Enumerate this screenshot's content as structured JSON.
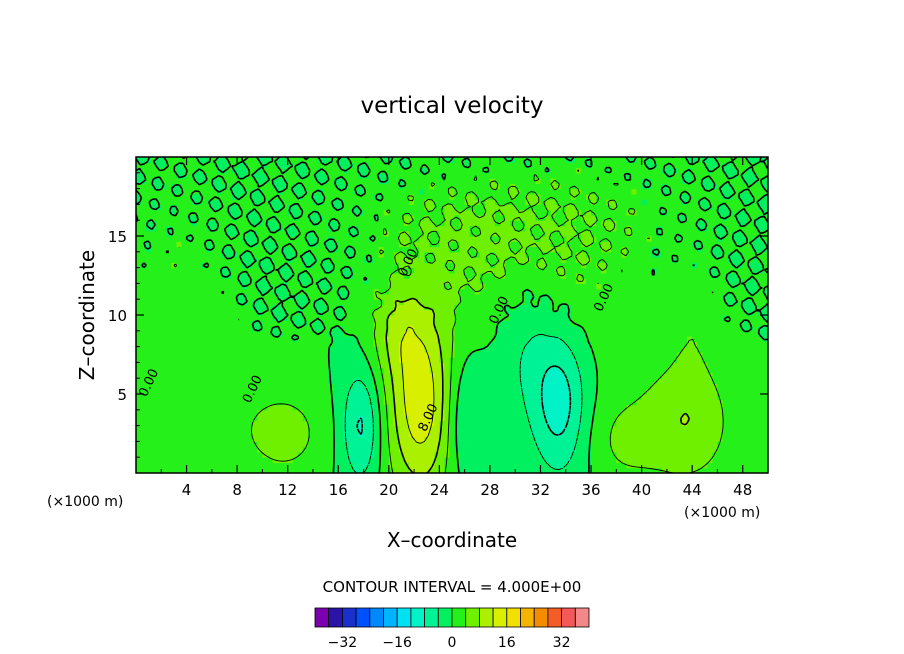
{
  "chart_data": {
    "type": "heatmap",
    "title": "vertical velocity",
    "xlabel": "X–coordinate",
    "ylabel": "Z–coordinate",
    "x_unit_left": "(×1000 m)",
    "x_unit_right": "(×1000 m)",
    "xlim": [
      0,
      50
    ],
    "ylim": [
      0,
      20
    ],
    "x_ticks": [
      "4",
      "8",
      "12",
      "16",
      "20",
      "24",
      "28",
      "32",
      "36",
      "40",
      "44",
      "48"
    ],
    "x_tick_values": [
      4,
      8,
      12,
      16,
      20,
      24,
      28,
      32,
      36,
      40,
      44,
      48
    ],
    "y_ticks": [
      "5",
      "10",
      "15"
    ],
    "y_tick_values": [
      5,
      10,
      15
    ],
    "contour_interval_text": "CONTOUR INTERVAL = 4.000E+00",
    "contour_interval": 4,
    "contour_labels": [
      {
        "text": "0.00",
        "x": 21.8,
        "y": 13.2
      },
      {
        "text": "0.00",
        "x": 29.0,
        "y": 10.2
      },
      {
        "text": "0.00",
        "x": 37.3,
        "y": 11.0
      },
      {
        "text": "0.00",
        "x": 9.5,
        "y": 5.2
      },
      {
        "text": "0.00",
        "x": 1.3,
        "y": 5.6
      },
      {
        "text": "8.00",
        "x": 23.4,
        "y": 3.4
      }
    ],
    "colorbar": {
      "levels": [
        -40,
        -36,
        -32,
        -28,
        -24,
        -20,
        -16,
        -12,
        -8,
        -4,
        0,
        4,
        8,
        12,
        16,
        20,
        24,
        28,
        32,
        36,
        40
      ],
      "colors": [
        "#7a00b0",
        "#2a14a8",
        "#1a30cc",
        "#0050ff",
        "#0088ff",
        "#00b4ff",
        "#00e2f2",
        "#00f2c6",
        "#00f296",
        "#00f060",
        "#26f01a",
        "#6ef000",
        "#aaf000",
        "#d8f000",
        "#f4e000",
        "#f4b400",
        "#f48c00",
        "#f45c28",
        "#f45858",
        "#f48888"
      ],
      "tick_labels": [
        "−32",
        "−16",
        "0",
        "16",
        "32"
      ],
      "tick_values": [
        -32,
        -16,
        0,
        16,
        32
      ]
    },
    "features": [
      {
        "x": 22.5,
        "z": 4.5,
        "value": 14.5,
        "sx": 1.9,
        "sz": 4.3
      },
      {
        "x": 26.0,
        "z": 3.5,
        "value": -5.5,
        "sx": 1.1,
        "sz": 2.8
      },
      {
        "x": 17.8,
        "z": 3.0,
        "value": -9.0,
        "sx": 1.1,
        "sz": 2.6
      },
      {
        "x": 33.5,
        "z": 4.5,
        "value": -10.0,
        "sx": 1.5,
        "sz": 3.2
      },
      {
        "x": 30.8,
        "z": 8.0,
        "value": -4.0,
        "sx": 1.6,
        "sz": 3.5
      },
      {
        "x": 43.5,
        "z": 3.2,
        "value": 7.5,
        "sx": 2.6,
        "sz": 2.8
      },
      {
        "x": 44.0,
        "z": 9.5,
        "value": 2.5,
        "sx": 1.2,
        "sz": 3.2
      },
      {
        "x": 12.0,
        "z": 2.5,
        "value": 5.0,
        "sx": 2.2,
        "sz": 2.0
      },
      {
        "x": 2.5,
        "z": 12.5,
        "value": 2.0,
        "sx": 2.5,
        "sz": 4.0
      },
      {
        "x": 5.0,
        "z": 9.0,
        "value": 1.5,
        "sx": 2.0,
        "sz": 3.0
      },
      {
        "x": 27.5,
        "z": 13.5,
        "value": 4.0,
        "sx": 5.0,
        "sz": 3.0
      },
      {
        "x": 29.0,
        "z": 16.5,
        "value": 2.0,
        "sx": 9.0,
        "sz": 2.2
      },
      {
        "x": 36.5,
        "z": 13.0,
        "value": 2.0,
        "sx": 4.0,
        "sz": 5.0
      },
      {
        "x": 20.5,
        "z": 9.0,
        "value": 5.0,
        "sx": 1.5,
        "sz": 2.0
      },
      {
        "x": 8.0,
        "z": 3.0,
        "value": 2.0,
        "sx": 3.0,
        "sz": 2.5
      },
      {
        "x": 38.5,
        "z": 2.0,
        "value": 4.0,
        "sx": 2.0,
        "sz": 2.0
      }
    ]
  }
}
